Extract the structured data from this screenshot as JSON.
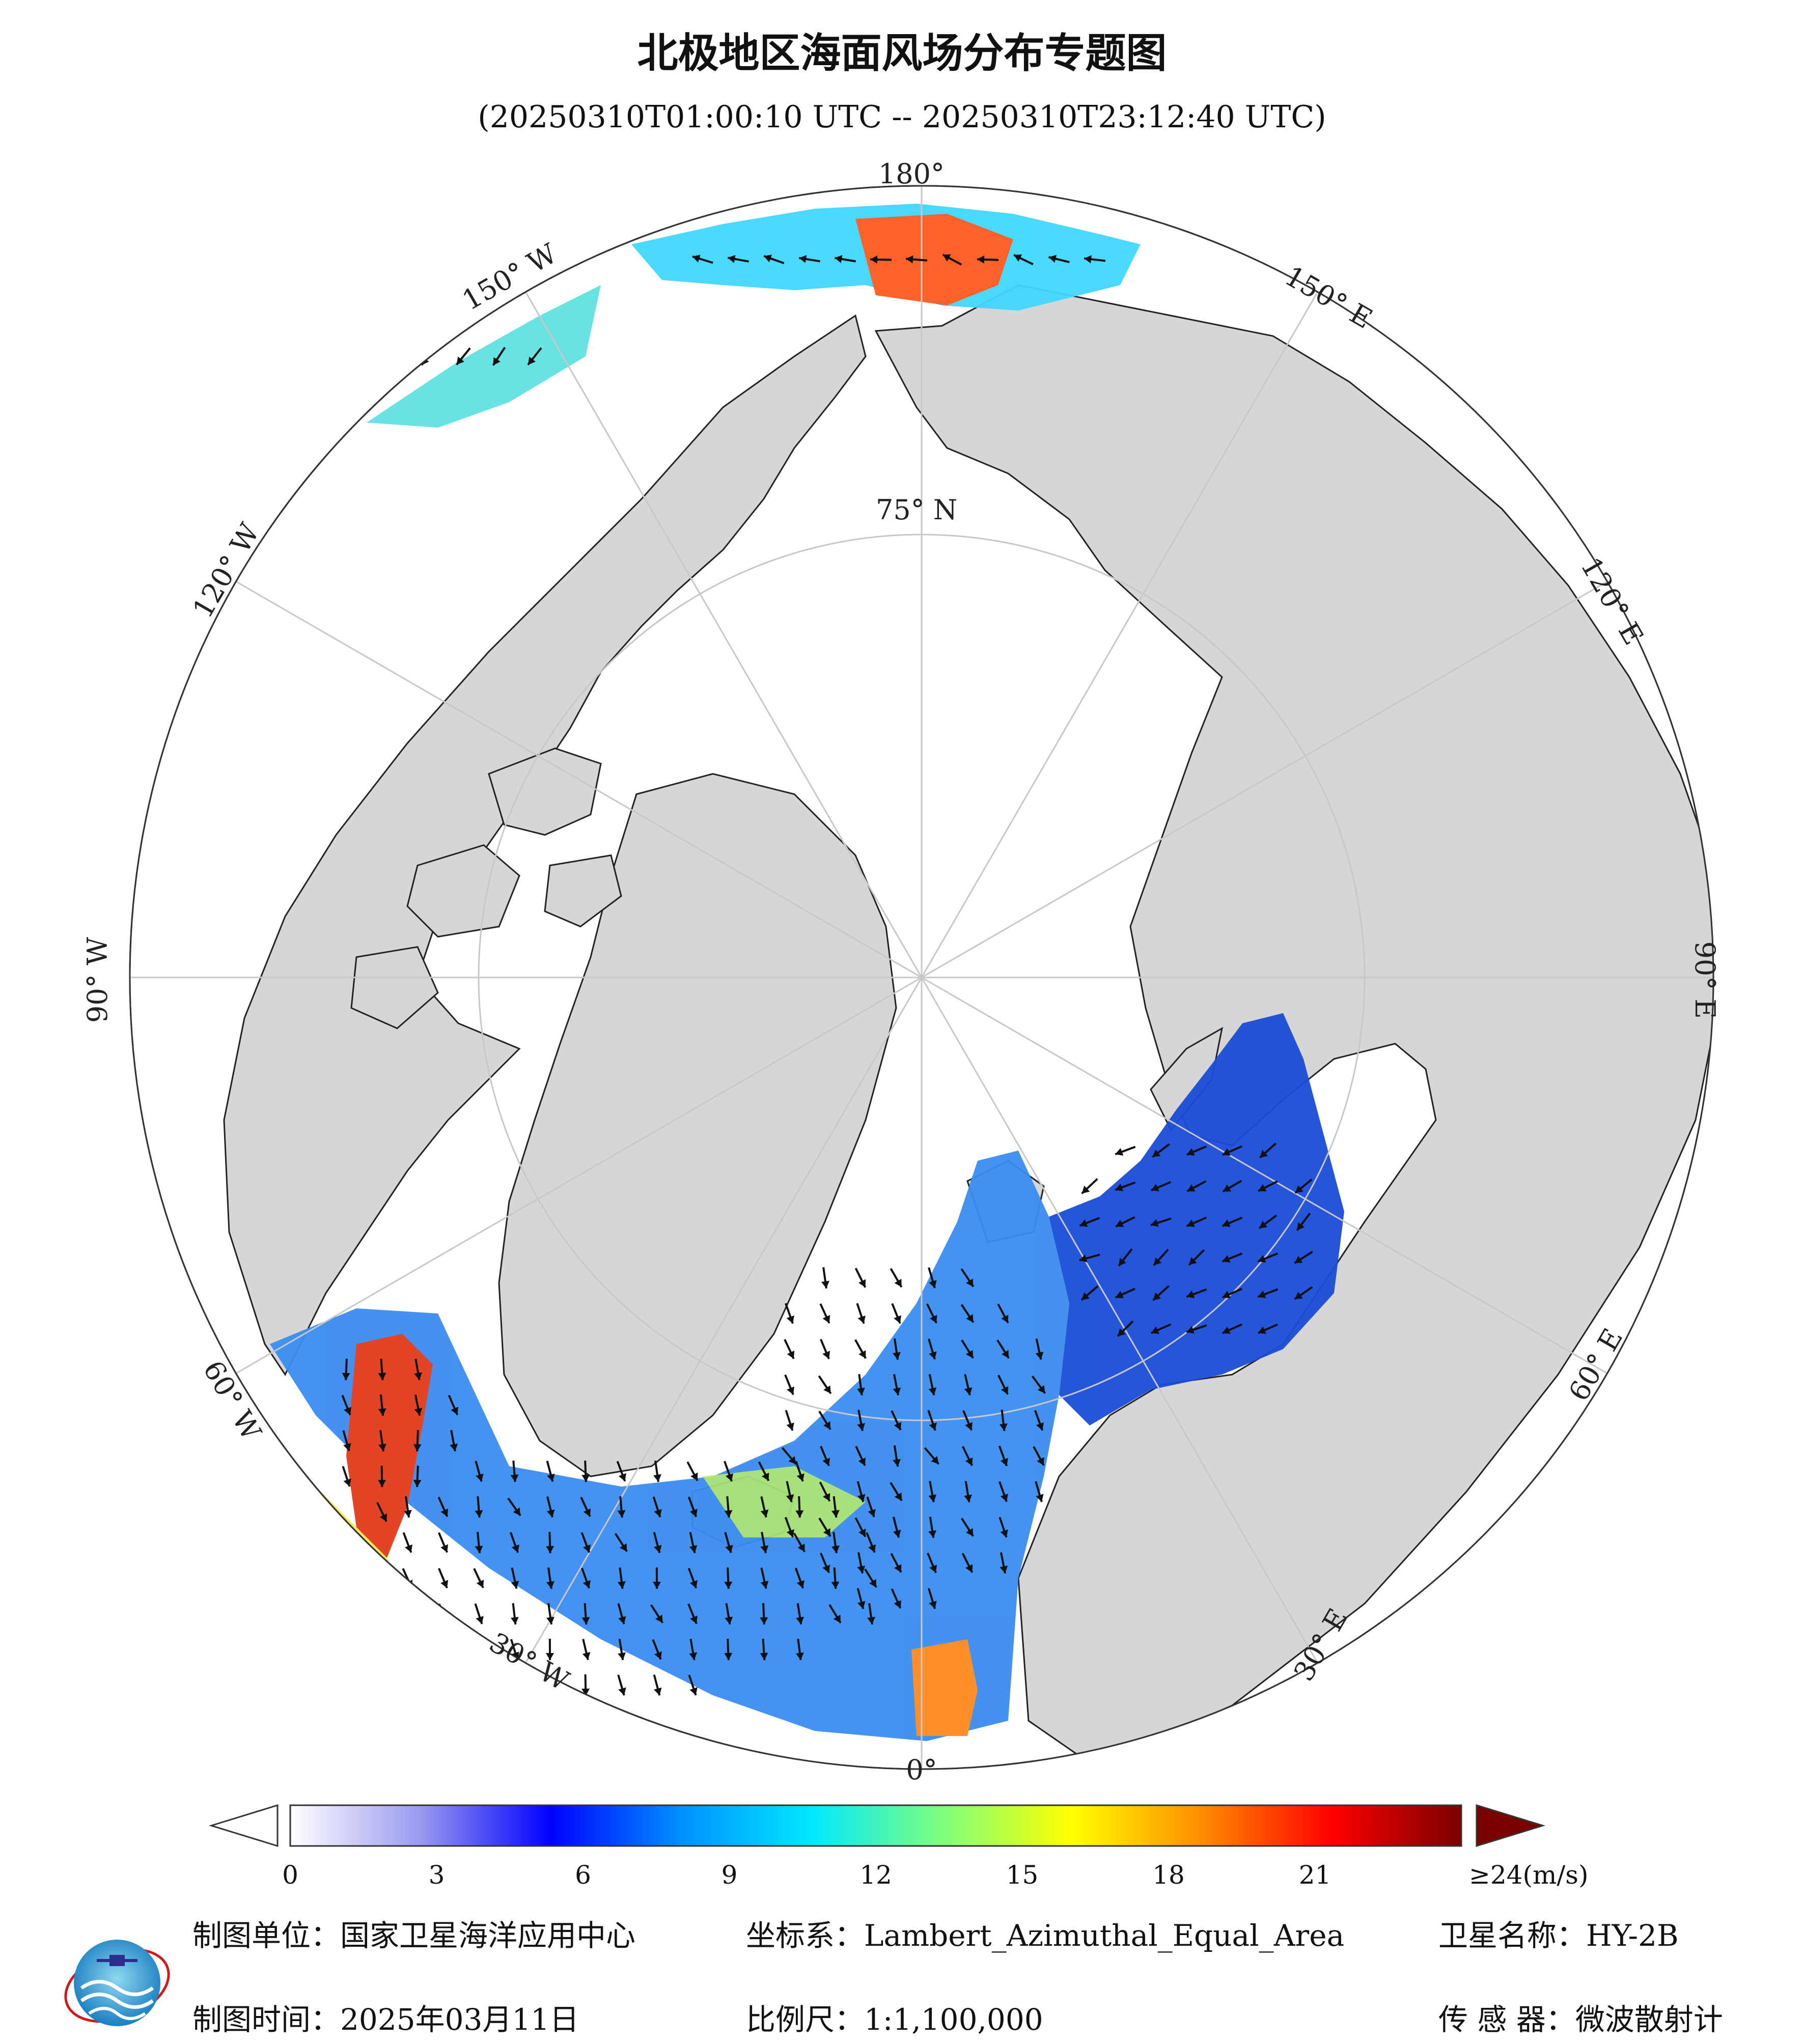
{
  "title": "北极地区海面风场分布专题图",
  "subtitle": "(20250310T01:00:10 UTC -- 20250310T23:12:40 UTC)",
  "map": {
    "projection": "Lambert Azimuthal Equal Area",
    "latitude_label": "75° N",
    "longitude_labels": [
      "0°",
      "30° E",
      "60° E",
      "90° E",
      "120° E",
      "150° E",
      "180°",
      "150° W",
      "120° W",
      "90° W",
      "60° W",
      "30° W"
    ],
    "colors": {
      "land": "#d6d6d6",
      "ocean": "#ffffff",
      "grid": "#c8c8c8",
      "coast": "#222222"
    }
  },
  "colorbar": {
    "tick_labels": [
      "0",
      "3",
      "6",
      "9",
      "12",
      "15",
      "18",
      "21",
      "≥24(m/s)"
    ],
    "min": 0,
    "max": 24,
    "colors": [
      "#ffffff",
      "#9a9af0",
      "#0000ff",
      "#0090ff",
      "#00e8ff",
      "#7dff7d",
      "#ffff00",
      "#ff8c00",
      "#ff0000",
      "#7a0000"
    ]
  },
  "footer": {
    "unit_label": "制图单位：国家卫星海洋应用中心",
    "coord_label": "坐标系：Lambert_Azimuthal_Equal_Area",
    "satellite_label": "卫星名称：HY-2B",
    "date_label": "制图时间：2025年03月11日",
    "scale_label": "比例尺：1:1,100,000",
    "sensor_label": "传 感 器：微波散射计"
  },
  "logo": {
    "text": "国家卫星海洋应用中心"
  }
}
